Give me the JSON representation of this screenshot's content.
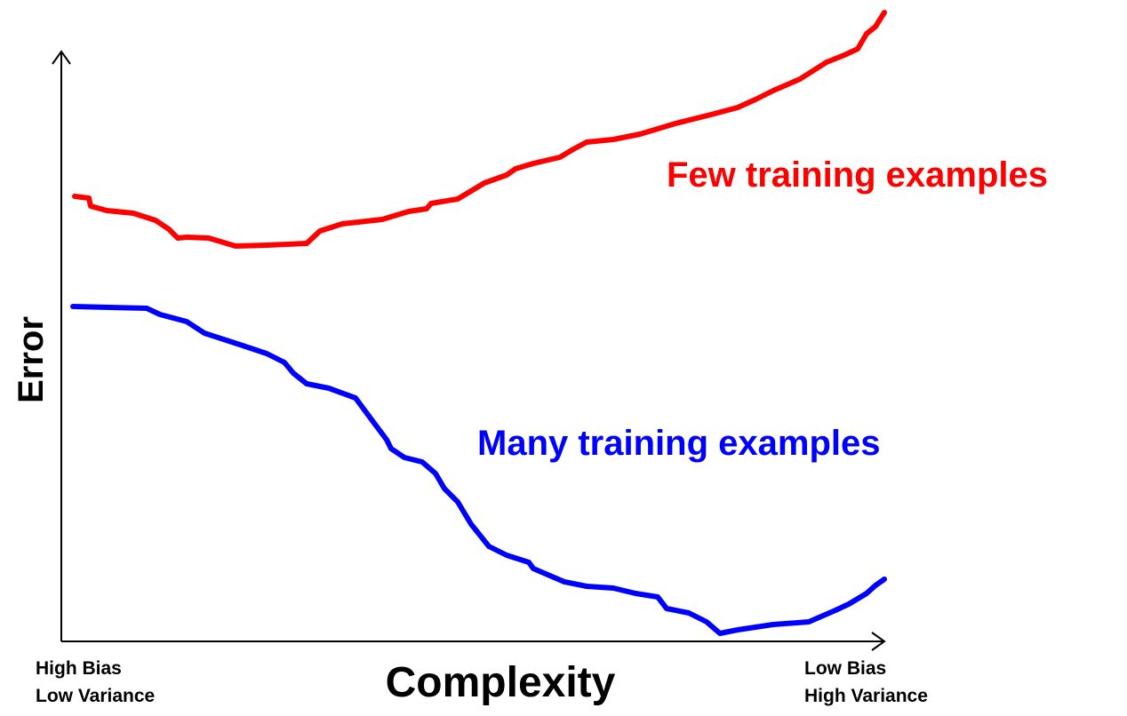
{
  "axes": {
    "y_label": "Error",
    "x_label": "Complexity"
  },
  "x_ends": {
    "left": [
      "High Bias",
      "Low Variance"
    ],
    "right": [
      "Low Bias",
      "High Variance"
    ]
  },
  "curves": [
    {
      "label": "Few training examples",
      "color": "#ff0000"
    },
    {
      "label": "Many training examples",
      "color": "#0000ff"
    }
  ]
}
